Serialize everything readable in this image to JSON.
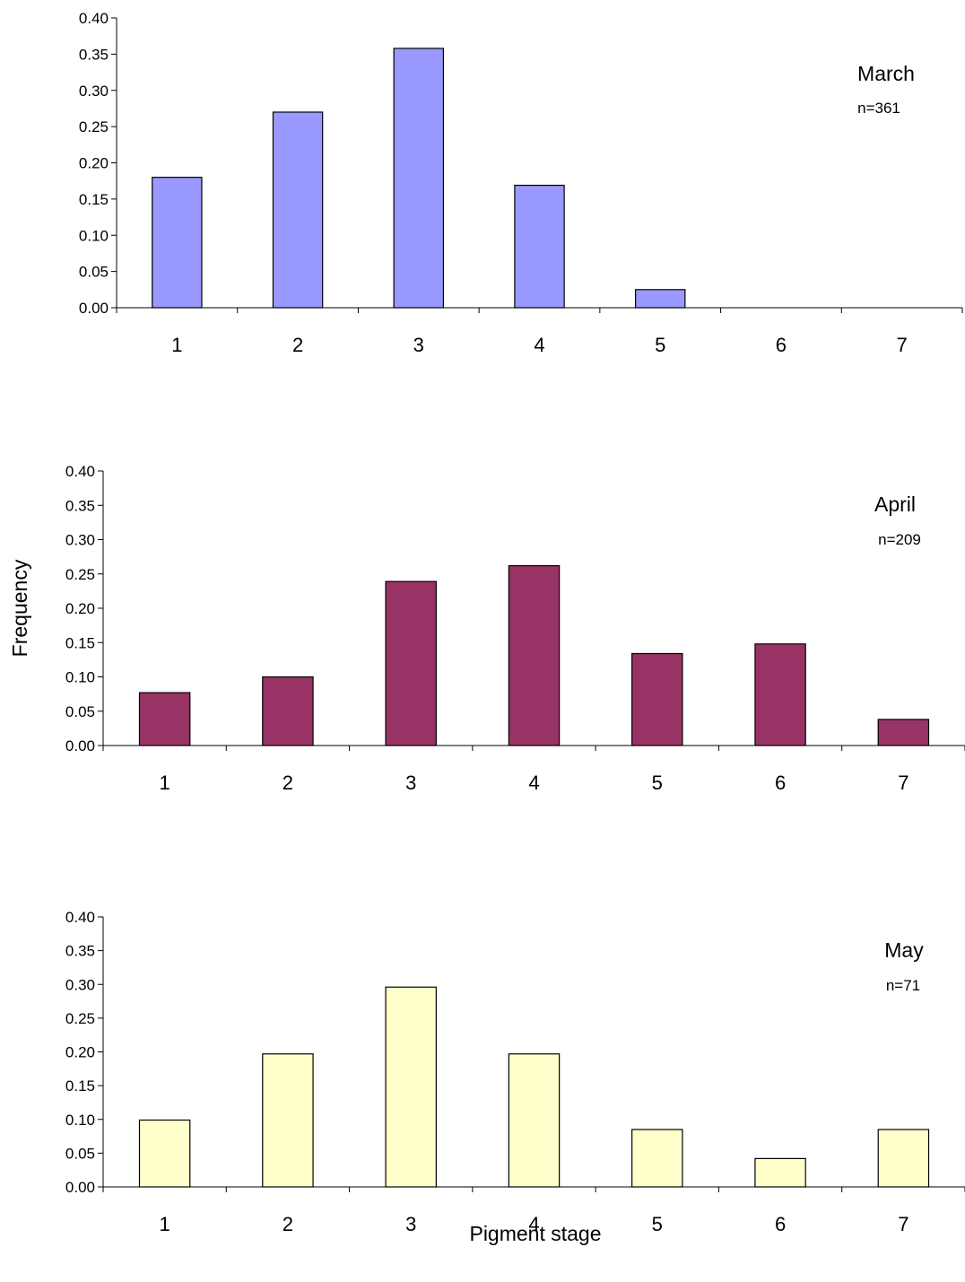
{
  "figure": {
    "shared_ylabel": "Frequency",
    "shared_xlabel": "Pigment stage"
  },
  "chart_data": [
    {
      "type": "bar",
      "categories": [
        "1",
        "2",
        "3",
        "4",
        "5",
        "6",
        "7"
      ],
      "values": [
        0.18,
        0.27,
        0.358,
        0.169,
        0.025,
        0,
        0
      ],
      "ylim": [
        0,
        0.4
      ],
      "yticks": [
        "0.00",
        "0.05",
        "0.10",
        "0.15",
        "0.20",
        "0.25",
        "0.30",
        "0.35",
        "0.40"
      ],
      "annotation": {
        "label": "March",
        "n": "n=361"
      },
      "bar_color": "#9999ff",
      "grid": false
    },
    {
      "type": "bar",
      "categories": [
        "1",
        "2",
        "3",
        "4",
        "5",
        "6",
        "7"
      ],
      "values": [
        0.077,
        0.1,
        0.239,
        0.262,
        0.134,
        0.148,
        0.038
      ],
      "ylim": [
        0,
        0.4
      ],
      "yticks": [
        "0.00",
        "0.05",
        "0.10",
        "0.15",
        "0.20",
        "0.25",
        "0.30",
        "0.35",
        "0.40"
      ],
      "annotation": {
        "label": "April",
        "n": "n=209"
      },
      "bar_color": "#993366",
      "grid": false
    },
    {
      "type": "bar",
      "categories": [
        "1",
        "2",
        "3",
        "4",
        "5",
        "6",
        "7"
      ],
      "values": [
        0.099,
        0.197,
        0.296,
        0.197,
        0.085,
        0.042,
        0.085
      ],
      "ylim": [
        0,
        0.4
      ],
      "yticks": [
        "0.00",
        "0.05",
        "0.10",
        "0.15",
        "0.20",
        "0.25",
        "0.30",
        "0.35",
        "0.40"
      ],
      "annotation": {
        "label": "May",
        "n": "n=71"
      },
      "bar_color": "#ffffcc",
      "grid": false
    }
  ]
}
